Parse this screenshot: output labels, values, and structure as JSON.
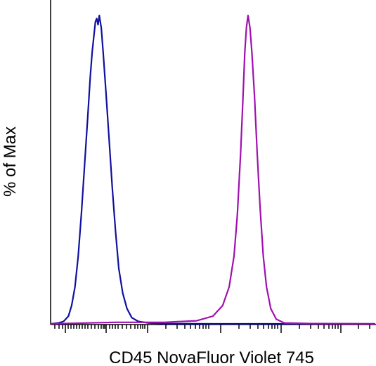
{
  "chart_data": {
    "type": "line",
    "title": "",
    "xlabel": "CD45 NovaFluor Violet 745",
    "ylabel": "% of Max",
    "xscale": "biexponential",
    "ylim": [
      0,
      100
    ],
    "grid": false,
    "legend": "none",
    "series": [
      {
        "color": "#1010a0",
        "points": [
          [
            0.0,
            0
          ],
          [
            0.025,
            0.3
          ],
          [
            0.04,
            0.8
          ],
          [
            0.055,
            2.5
          ],
          [
            0.065,
            6
          ],
          [
            0.075,
            12
          ],
          [
            0.085,
            22
          ],
          [
            0.095,
            36
          ],
          [
            0.105,
            52
          ],
          [
            0.115,
            68
          ],
          [
            0.122,
            80
          ],
          [
            0.128,
            88
          ],
          [
            0.134,
            94
          ],
          [
            0.138,
            98
          ],
          [
            0.142,
            99
          ],
          [
            0.146,
            97
          ],
          [
            0.15,
            100
          ],
          [
            0.156,
            96
          ],
          [
            0.162,
            88
          ],
          [
            0.17,
            76
          ],
          [
            0.18,
            60
          ],
          [
            0.19,
            44
          ],
          [
            0.2,
            30
          ],
          [
            0.21,
            18
          ],
          [
            0.222,
            10
          ],
          [
            0.235,
            5
          ],
          [
            0.25,
            2
          ],
          [
            0.27,
            0.8
          ],
          [
            0.3,
            0.3
          ],
          [
            0.35,
            0.1
          ],
          [
            0.5,
            0
          ],
          [
            1.0,
            0
          ]
        ]
      },
      {
        "color": "#a010b0",
        "points": [
          [
            0.0,
            0
          ],
          [
            0.2,
            0.5
          ],
          [
            0.35,
            0.5
          ],
          [
            0.45,
            1
          ],
          [
            0.5,
            2.5
          ],
          [
            0.53,
            6
          ],
          [
            0.55,
            12
          ],
          [
            0.565,
            22
          ],
          [
            0.575,
            35
          ],
          [
            0.585,
            55
          ],
          [
            0.592,
            72
          ],
          [
            0.598,
            88
          ],
          [
            0.603,
            96
          ],
          [
            0.608,
            100
          ],
          [
            0.614,
            96
          ],
          [
            0.62,
            88
          ],
          [
            0.628,
            74
          ],
          [
            0.636,
            56
          ],
          [
            0.645,
            38
          ],
          [
            0.655,
            22
          ],
          [
            0.665,
            12
          ],
          [
            0.678,
            5
          ],
          [
            0.695,
            1.5
          ],
          [
            0.72,
            0.3
          ],
          [
            0.8,
            0.1
          ],
          [
            1.0,
            0
          ]
        ]
      }
    ]
  }
}
